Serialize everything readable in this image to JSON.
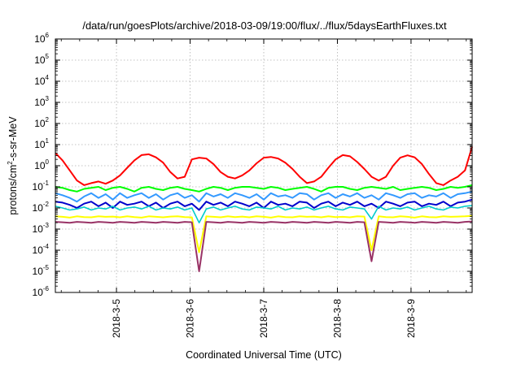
{
  "chart_data": {
    "type": "line",
    "title": "/data/run/goesPlots/archive/2018-03-09/19:00/flux/../flux/5daysEarthFluxes.txt",
    "xlabel": "Coordinated Universal Time (UTC)",
    "ylabel": "protons/cm2-s-sr-MeV",
    "ylabel_parts": {
      "pre": "protons/cm",
      "sup": "2",
      "post": "-s-sr-MeV"
    },
    "yscale": "log",
    "ylim_exponents": [
      -6,
      6
    ],
    "y_ticks": [
      {
        "base": "10",
        "exp": "-6"
      },
      {
        "base": "10",
        "exp": "-5"
      },
      {
        "base": "10",
        "exp": "-4"
      },
      {
        "base": "10",
        "exp": "-3"
      },
      {
        "base": "10",
        "exp": "-2"
      },
      {
        "base": "10",
        "exp": "-1"
      },
      {
        "base": "10",
        "exp": "0"
      },
      {
        "base": "10",
        "exp": "1"
      },
      {
        "base": "10",
        "exp": "2"
      },
      {
        "base": "10",
        "exp": "3"
      },
      {
        "base": "10",
        "exp": "4"
      },
      {
        "base": "10",
        "exp": "5"
      },
      {
        "base": "10",
        "exp": "6"
      }
    ],
    "x_unit": "day of March 2018",
    "xlim": [
      4.17,
      9.83
    ],
    "x_ticks": [
      {
        "label": "2018-3-5",
        "value": 5
      },
      {
        "label": "2018-3-6",
        "value": 6
      },
      {
        "label": "2018-3-7",
        "value": 7
      },
      {
        "label": "2018-3-8",
        "value": 8
      },
      {
        "label": "2018-3-9",
        "value": 9
      }
    ],
    "grid": true,
    "series": [
      {
        "color": "#ff0000",
        "width": 2.0,
        "y_estimate": [
          4,
          1.8,
          0.6,
          0.2,
          0.12,
          0.15,
          0.18,
          0.14,
          0.2,
          0.35,
          0.8,
          1.8,
          3.2,
          3.5,
          2.5,
          1.4,
          0.5,
          0.25,
          0.3,
          2,
          2.4,
          2.2,
          1.2,
          0.5,
          0.3,
          0.25,
          0.35,
          0.6,
          1.3,
          2.4,
          2.6,
          2.2,
          1.4,
          0.7,
          0.3,
          0.15,
          0.18,
          0.3,
          0.8,
          2,
          3.2,
          2.8,
          1.5,
          0.7,
          0.3,
          0.2,
          0.3,
          1,
          2.4,
          3.1,
          2.5,
          1.2,
          0.4,
          0.15,
          0.12,
          0.2,
          0.3,
          0.6,
          8
        ]
      },
      {
        "color": "#00ff00",
        "width": 2.0,
        "y_estimate": [
          0.1,
          0.09,
          0.07,
          0.06,
          0.08,
          0.09,
          0.1,
          0.07,
          0.09,
          0.1,
          0.08,
          0.06,
          0.09,
          0.1,
          0.08,
          0.07,
          0.09,
          0.1,
          0.08,
          0.07,
          0.06,
          0.08,
          0.1,
          0.09,
          0.07,
          0.09,
          0.1,
          0.1,
          0.09,
          0.08,
          0.1,
          0.09,
          0.07,
          0.08,
          0.09,
          0.1,
          0.08,
          0.06,
          0.09,
          0.1,
          0.1,
          0.08,
          0.07,
          0.09,
          0.1,
          0.09,
          0.08,
          0.1,
          0.07,
          0.08,
          0.09,
          0.1,
          0.09,
          0.07,
          0.08,
          0.1,
          0.09,
          0.1,
          0.12
        ]
      },
      {
        "color": "#3399ff",
        "width": 2.0,
        "y_estimate": [
          0.05,
          0.04,
          0.03,
          0.02,
          0.035,
          0.05,
          0.03,
          0.045,
          0.025,
          0.05,
          0.03,
          0.04,
          0.05,
          0.03,
          0.045,
          0.025,
          0.04,
          0.05,
          0.03,
          0.04,
          0.02,
          0.05,
          0.035,
          0.045,
          0.03,
          0.05,
          0.04,
          0.03,
          0.045,
          0.025,
          0.05,
          0.035,
          0.04,
          0.03,
          0.05,
          0.045,
          0.025,
          0.04,
          0.05,
          0.03,
          0.045,
          0.035,
          0.05,
          0.03,
          0.04,
          0.025,
          0.05,
          0.04,
          0.03,
          0.045,
          0.05,
          0.03,
          0.04,
          0.035,
          0.05,
          0.03,
          0.045,
          0.05,
          0.06
        ]
      },
      {
        "color": "#0000cc",
        "width": 2.0,
        "y_estimate": [
          0.02,
          0.018,
          0.014,
          0.01,
          0.016,
          0.02,
          0.012,
          0.018,
          0.01,
          0.02,
          0.014,
          0.016,
          0.02,
          0.012,
          0.018,
          0.01,
          0.016,
          0.02,
          0.012,
          0.016,
          0.008,
          0.02,
          0.014,
          0.018,
          0.012,
          0.02,
          0.016,
          0.012,
          0.018,
          0.01,
          0.02,
          0.014,
          0.016,
          0.012,
          0.02,
          0.018,
          0.01,
          0.016,
          0.02,
          0.012,
          0.018,
          0.014,
          0.02,
          0.012,
          0.016,
          0.01,
          0.02,
          0.016,
          0.012,
          0.018,
          0.02,
          0.012,
          0.016,
          0.014,
          0.02,
          0.012,
          0.018,
          0.02,
          0.025
        ]
      },
      {
        "color": "#00cccc",
        "width": 1.6,
        "y_estimate": [
          0.012,
          0.01,
          0.008,
          0.009,
          0.011,
          0.008,
          0.01,
          0.009,
          0.012,
          0.008,
          0.01,
          0.011,
          0.009,
          0.012,
          0.008,
          0.01,
          0.009,
          0.011,
          0.008,
          0.01,
          0.002,
          0.009,
          0.011,
          0.008,
          0.01,
          0.012,
          0.009,
          0.008,
          0.011,
          0.01,
          0.009,
          0.012,
          0.008,
          0.01,
          0.009,
          0.011,
          0.008,
          0.01,
          0.012,
          0.009,
          0.008,
          0.011,
          0.01,
          0.009,
          0.003,
          0.012,
          0.008,
          0.01,
          0.009,
          0.011,
          0.008,
          0.01,
          0.012,
          0.009,
          0.008,
          0.011,
          0.01,
          0.012,
          0.013
        ]
      },
      {
        "color": "#ffff00",
        "width": 2.0,
        "y_estimate": [
          0.004,
          0.0038,
          0.0035,
          0.004,
          0.0037,
          0.0036,
          0.004,
          0.0038,
          0.0039,
          0.0036,
          0.004,
          0.0037,
          0.0035,
          0.004,
          0.0038,
          0.0036,
          0.0039,
          0.004,
          0.0037,
          0.0036,
          8e-05,
          0.004,
          0.0038,
          0.0036,
          0.004,
          0.0037,
          0.0039,
          0.0036,
          0.004,
          0.0038,
          0.0035,
          0.004,
          0.0037,
          0.0036,
          0.004,
          0.0038,
          0.0039,
          0.0036,
          0.004,
          0.0037,
          0.0038,
          0.0036,
          0.004,
          0.0039,
          0.0001,
          0.004,
          0.0037,
          0.0036,
          0.004,
          0.0038,
          0.0035,
          0.004,
          0.0037,
          0.0036,
          0.004,
          0.0038,
          0.0039,
          0.004,
          0.0042
        ]
      },
      {
        "color": "#993366",
        "width": 2.0,
        "y_estimate": [
          0.0022,
          0.0021,
          0.002,
          0.0022,
          0.0021,
          0.002,
          0.0022,
          0.0021,
          0.002,
          0.0022,
          0.0021,
          0.002,
          0.0022,
          0.0021,
          0.002,
          0.0022,
          0.0021,
          0.002,
          0.0022,
          0.0021,
          1e-05,
          0.0022,
          0.0021,
          0.002,
          0.0022,
          0.0021,
          0.002,
          0.0022,
          0.0021,
          0.002,
          0.0022,
          0.0021,
          0.002,
          0.0022,
          0.0021,
          0.002,
          0.0022,
          0.0021,
          0.002,
          0.0022,
          0.0021,
          0.002,
          0.0022,
          0.0021,
          3e-05,
          0.0022,
          0.0021,
          0.002,
          0.0022,
          0.0021,
          0.002,
          0.0022,
          0.0021,
          0.002,
          0.0022,
          0.0021,
          0.002,
          0.0022,
          0.0023
        ]
      }
    ]
  }
}
